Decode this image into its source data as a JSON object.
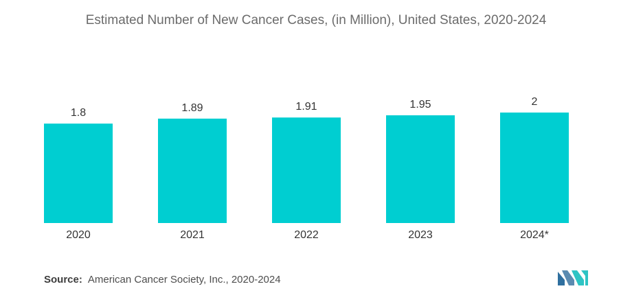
{
  "chart_data": {
    "type": "bar",
    "title": "Estimated Number of New Cancer Cases, (in Million), United States, 2020-2024",
    "categories": [
      "2020",
      "2021",
      "2022",
      "2023",
      "2024*"
    ],
    "values": [
      1.8,
      1.89,
      1.91,
      1.95,
      2
    ],
    "value_labels": [
      "1.8",
      "1.89",
      "1.91",
      "1.95",
      "2"
    ],
    "xlabel": "",
    "ylabel": "",
    "ylim": [
      0,
      2
    ],
    "grid": false,
    "bar_color": "#00CED1"
  },
  "source": {
    "label": "Source:",
    "text": "American Cancer Society, Inc., 2020-2024"
  },
  "colors": {
    "bar": "#00CED1",
    "text": "#333333",
    "title": "#6b6b6b",
    "logo_dark": "#5b8bb0",
    "logo_light": "#2ec4c4"
  },
  "logo": {
    "icon": "mordor-intelligence-logo"
  }
}
